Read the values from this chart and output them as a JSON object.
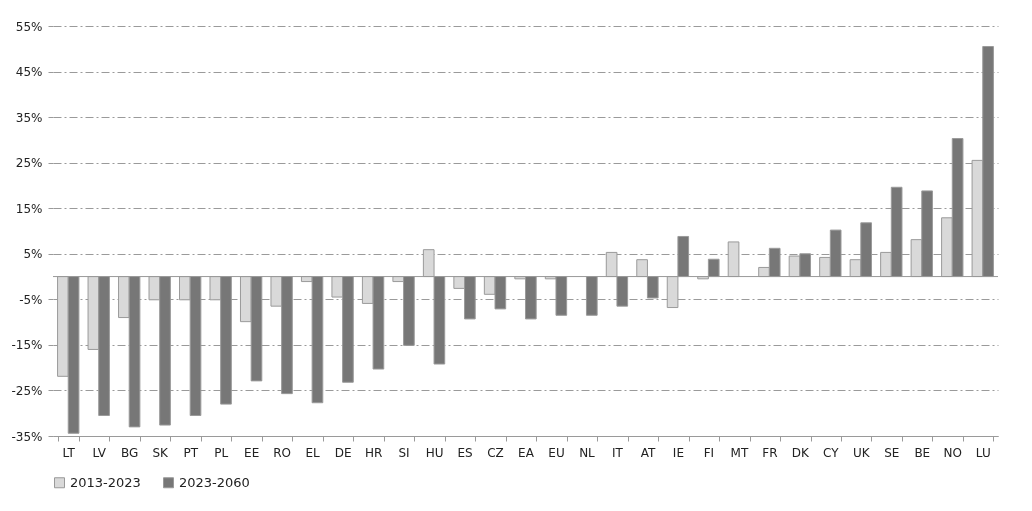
{
  "chart_data": {
    "type": "bar",
    "categories": [
      "LT",
      "LV",
      "BG",
      "SK",
      "PT",
      "PL",
      "EE",
      "RO",
      "EL",
      "DE",
      "HR",
      "SI",
      "HU",
      "ES",
      "CZ",
      "EA",
      "EU",
      "NL",
      "IT",
      "AT",
      "IE",
      "FI",
      "MT",
      "FR",
      "DK",
      "CY",
      "UK",
      "SE",
      "BE",
      "NO",
      "LU"
    ],
    "series": [
      {
        "name": "2013-2023",
        "color": "#d9d9d9",
        "values": [
          -21.9,
          -16.0,
          -9.0,
          -5.1,
          -5.1,
          -5.1,
          -9.9,
          -6.5,
          -1.1,
          -4.5,
          -5.9,
          -1.1,
          5.9,
          -2.6,
          -3.9,
          -0.5,
          -0.5,
          null,
          5.3,
          3.7,
          -6.8,
          -0.5,
          7.6,
          2.0,
          4.5,
          4.2,
          3.7,
          5.3,
          8.1,
          12.9,
          25.5
        ]
      },
      {
        "name": "2023-2060",
        "color": "#777777",
        "values": [
          -34.4,
          -30.5,
          -33.0,
          -32.6,
          -30.5,
          -28.0,
          -22.9,
          -25.7,
          -27.7,
          -23.2,
          -20.3,
          -15.1,
          -19.2,
          -9.3,
          -7.1,
          -9.3,
          -8.5,
          -8.5,
          -6.5,
          -4.7,
          8.8,
          3.8,
          null,
          6.2,
          5.0,
          10.2,
          11.8,
          19.6,
          18.8,
          30.3,
          50.5
        ]
      }
    ],
    "ylim": [
      -35,
      55
    ],
    "yticks": [
      {
        "value": -35,
        "label": "-35%"
      },
      {
        "value": -25,
        "label": "-25%"
      },
      {
        "value": -15,
        "label": "-15%"
      },
      {
        "value": -5,
        "label": "-5%"
      },
      {
        "value": 5,
        "label": "5%"
      },
      {
        "value": 15,
        "label": "15%"
      },
      {
        "value": 25,
        "label": "25%"
      },
      {
        "value": 35,
        "label": "35%"
      },
      {
        "value": 45,
        "label": "45%"
      },
      {
        "value": 55,
        "label": "55%"
      }
    ],
    "grid": "y",
    "legend": "bottom"
  }
}
